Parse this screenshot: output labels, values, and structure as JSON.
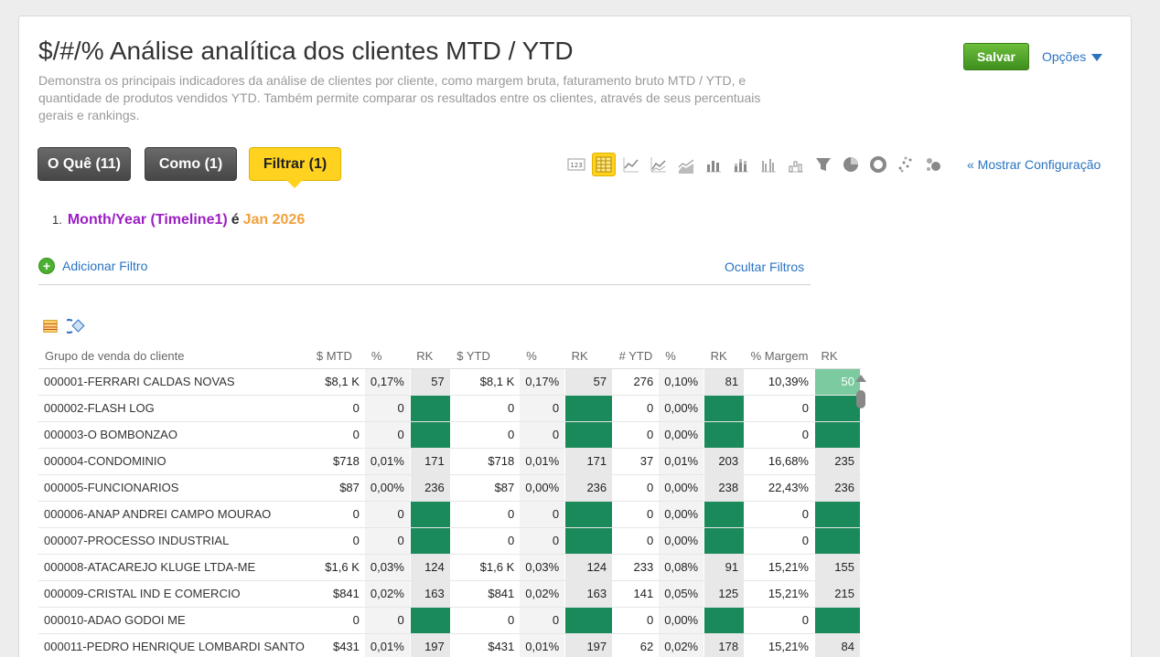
{
  "header": {
    "title": "$/#/% Análise analítica dos clientes MTD / YTD",
    "description": "Demonstra os principais indicadores da análise de clientes por cliente, como margem bruta, faturamento bruto MTD / YTD, e quantidade de produtos vendidos YTD. Também permite comparar os resultados entre os clientes, através de seus percentuais gerais e rankings.",
    "save_label": "Salvar",
    "options_label": "Opções"
  },
  "tabs": [
    {
      "label": "O Quê (11)"
    },
    {
      "label": "Como (1)"
    },
    {
      "label": "Filtrar (1)"
    }
  ],
  "viz_icons": [
    "number-icon",
    "table-icon",
    "line-chart-icon",
    "area-line-chart-icon",
    "area-chart-icon",
    "bar-chart-icon",
    "stacked-bar-chart-icon",
    "grouped-bar-chart-icon",
    "waterfall-chart-icon",
    "funnel-chart-icon",
    "pie-chart-icon",
    "donut-chart-icon",
    "scatter-chart-icon",
    "bubble-chart-icon"
  ],
  "show_config_label": "« Mostrar Configuração",
  "filter": {
    "number": "1.",
    "field": "Month/Year (Timeline1)",
    "operator": "é",
    "value": "Jan 2026",
    "add_label": "Adicionar Filtro",
    "hide_label": "Ocultar Filtros"
  },
  "table": {
    "headers": [
      "Grupo de venda do cliente",
      "$ MTD",
      "%",
      "RK",
      "$ YTD",
      "%",
      "RK",
      "# YTD",
      "%",
      "RK",
      "% Margem",
      "RK"
    ],
    "rows": [
      {
        "name": "000001-FERRARI CALDAS NOVAS",
        "mtd": "$8,1 K",
        "mtd_pct": "0,17%",
        "mtd_rk": "57",
        "ytd": "$8,1 K",
        "ytd_pct": "0,17%",
        "ytd_rk": "57",
        "qty": "276",
        "qty_pct": "0,10%",
        "qty_rk": "81",
        "margin": "10,39%",
        "margin_rk": "50"
      },
      {
        "name": "000002-FLASH LOG",
        "mtd": "0",
        "mtd_pct": "0",
        "mtd_rk": "",
        "ytd": "0",
        "ytd_pct": "0",
        "ytd_rk": "",
        "qty": "0",
        "qty_pct": "0,00%",
        "qty_rk": "",
        "margin": "0",
        "margin_rk": ""
      },
      {
        "name": "000003-O BOMBONZAO",
        "mtd": "0",
        "mtd_pct": "0",
        "mtd_rk": "",
        "ytd": "0",
        "ytd_pct": "0",
        "ytd_rk": "",
        "qty": "0",
        "qty_pct": "0,00%",
        "qty_rk": "",
        "margin": "0",
        "margin_rk": ""
      },
      {
        "name": "000004-CONDOMINIO",
        "mtd": "$718",
        "mtd_pct": "0,01%",
        "mtd_rk": "171",
        "ytd": "$718",
        "ytd_pct": "0,01%",
        "ytd_rk": "171",
        "qty": "37",
        "qty_pct": "0,01%",
        "qty_rk": "203",
        "margin": "16,68%",
        "margin_rk": "235"
      },
      {
        "name": "000005-FUNCIONARIOS",
        "mtd": "$87",
        "mtd_pct": "0,00%",
        "mtd_rk": "236",
        "ytd": "$87",
        "ytd_pct": "0,00%",
        "ytd_rk": "236",
        "qty": "0",
        "qty_pct": "0,00%",
        "qty_rk": "238",
        "margin": "22,43%",
        "margin_rk": "236"
      },
      {
        "name": "000006-ANAP ANDREI CAMPO MOURAO",
        "mtd": "0",
        "mtd_pct": "0",
        "mtd_rk": "",
        "ytd": "0",
        "ytd_pct": "0",
        "ytd_rk": "",
        "qty": "0",
        "qty_pct": "0,00%",
        "qty_rk": "",
        "margin": "0",
        "margin_rk": ""
      },
      {
        "name": "000007-PROCESSO INDUSTRIAL",
        "mtd": "0",
        "mtd_pct": "0",
        "mtd_rk": "",
        "ytd": "0",
        "ytd_pct": "0",
        "ytd_rk": "",
        "qty": "0",
        "qty_pct": "0,00%",
        "qty_rk": "",
        "margin": "0",
        "margin_rk": ""
      },
      {
        "name": "000008-ATACAREJO KLUGE LTDA-ME",
        "mtd": "$1,6 K",
        "mtd_pct": "0,03%",
        "mtd_rk": "124",
        "ytd": "$1,6 K",
        "ytd_pct": "0,03%",
        "ytd_rk": "124",
        "qty": "233",
        "qty_pct": "0,08%",
        "qty_rk": "91",
        "margin": "15,21%",
        "margin_rk": "155"
      },
      {
        "name": "000009-CRISTAL IND E COMERCIO",
        "mtd": "$841",
        "mtd_pct": "0,02%",
        "mtd_rk": "163",
        "ytd": "$841",
        "ytd_pct": "0,02%",
        "ytd_rk": "163",
        "qty": "141",
        "qty_pct": "0,05%",
        "qty_rk": "125",
        "margin": "15,21%",
        "margin_rk": "215"
      },
      {
        "name": "000010-ADAO GODOI ME",
        "mtd": "0",
        "mtd_pct": "0",
        "mtd_rk": "",
        "ytd": "0",
        "ytd_pct": "0",
        "ytd_rk": "",
        "qty": "0",
        "qty_pct": "0,00%",
        "qty_rk": "",
        "margin": "0",
        "margin_rk": ""
      },
      {
        "name": "000011-PEDRO HENRIQUE LOMBARDI SANTO",
        "mtd": "$431",
        "mtd_pct": "0,01%",
        "mtd_rk": "197",
        "ytd": "$431",
        "ytd_pct": "0,01%",
        "ytd_rk": "197",
        "qty": "62",
        "qty_pct": "0,02%",
        "qty_rk": "178",
        "margin": "15,21%",
        "margin_rk": "84"
      }
    ]
  },
  "colors": {
    "rank_empty": "#1b8a5a",
    "rank_highlight": "#7ccaa0",
    "accent_link": "#2a73c2",
    "filter_tab": "#ffd21f"
  }
}
